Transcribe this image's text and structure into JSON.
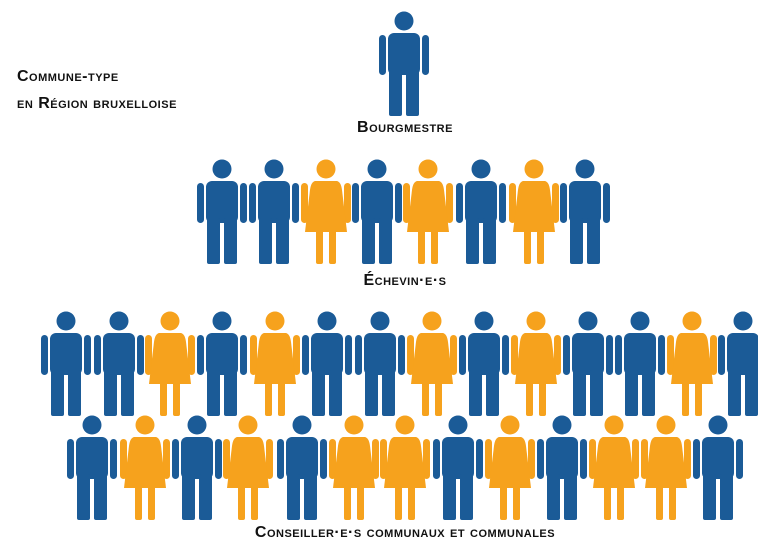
{
  "title": {
    "line1": "Commune-type",
    "line2": "en Région bruxelloise"
  },
  "groups": [
    {
      "label": "Bourgmestre"
    },
    {
      "label": "Échevin·e·s"
    },
    {
      "label": "Conseiller·e·s communaux et communales"
    }
  ]
}
